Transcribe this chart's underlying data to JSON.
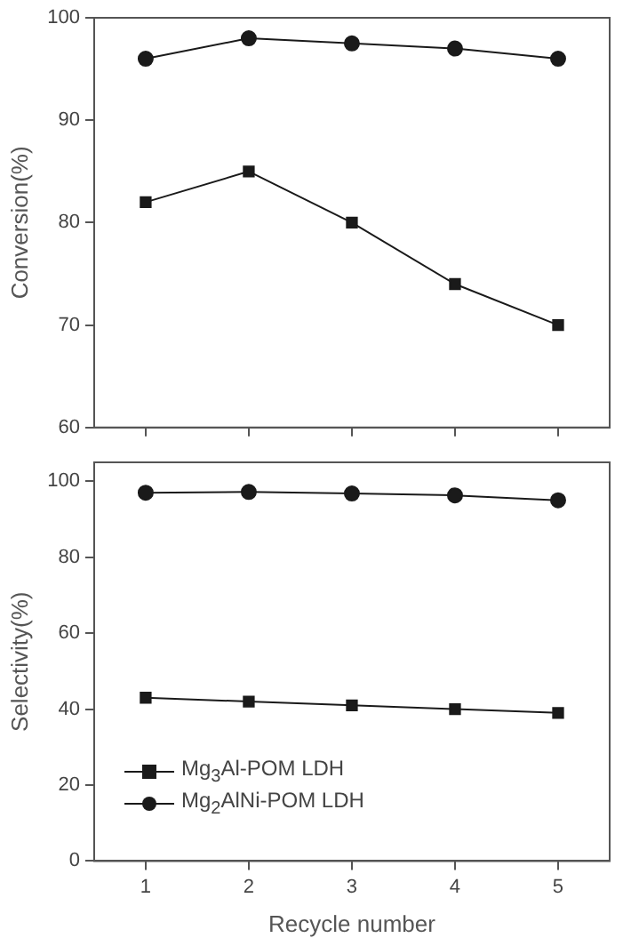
{
  "chart_data": [
    {
      "type": "line",
      "x": [
        1,
        2,
        3,
        4,
        5
      ],
      "xlim": [
        0.5,
        5.5
      ],
      "xticks": [
        1,
        2,
        3,
        4,
        5
      ],
      "ylabel": "Conversion(%)",
      "ylim": [
        60,
        100
      ],
      "yticks": [
        60,
        70,
        80,
        90,
        100
      ],
      "tick_labels": "y",
      "grid": false,
      "legend": false,
      "series": [
        {
          "color": "#1a1a1a",
          "marker": "square",
          "values": [
            82,
            85,
            80,
            74,
            70
          ]
        },
        {
          "color": "#1a1a1a",
          "marker": "circle",
          "values": [
            96,
            98,
            97.5,
            97,
            96
          ]
        }
      ]
    },
    {
      "type": "line",
      "x": [
        1,
        2,
        3,
        4,
        5
      ],
      "xlim": [
        0.5,
        5.5
      ],
      "xticks": [
        1,
        2,
        3,
        4,
        5
      ],
      "xlabel": "Recycle number",
      "ylabel": "Selectivity(%)",
      "ylim": [
        0,
        105
      ],
      "yticks": [
        0,
        20,
        40,
        60,
        80,
        100
      ],
      "grid": false,
      "legend": "left",
      "series": [
        {
          "name": "Mg$_{3}$Al-POM LDH",
          "color": "#1a1a1a",
          "marker": "square",
          "values": [
            43,
            42,
            41,
            40,
            39
          ]
        },
        {
          "name": "Mg$_{2}$AlNi-POM LDH",
          "color": "#1a1a1a",
          "marker": "circle",
          "values": [
            97,
            97.2,
            96.8,
            96.3,
            95
          ]
        }
      ]
    }
  ]
}
